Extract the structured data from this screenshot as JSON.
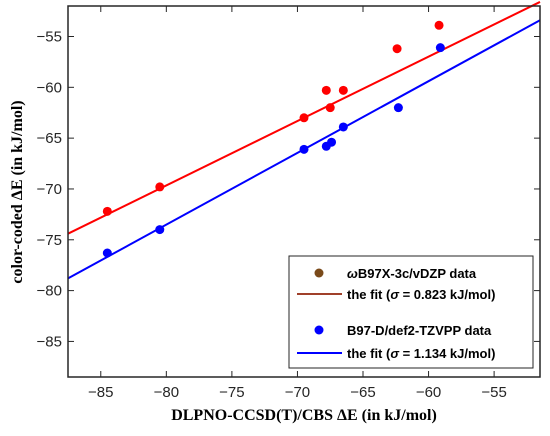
{
  "chart_data": {
    "type": "scatter",
    "xlabel": "DLPNO-CCSD(T)/CBS ΔE  (in kJ/mol)",
    "ylabel": "color-coded ΔE  (in kJ/mol)",
    "xlim": [
      -87.5,
      -51.5
    ],
    "ylim": [
      -88.5,
      -52.0
    ],
    "xticks": [
      -85,
      -80,
      -75,
      -70,
      -65,
      -60,
      -55
    ],
    "yticks": [
      -55,
      -60,
      -65,
      -70,
      -75,
      -80,
      -85
    ],
    "grid": false,
    "legend_position": "bottom-right",
    "series": [
      {
        "name": "ωB97X-3c/vDZP data",
        "legend_prefix": "ω",
        "legend_rest": "B97X-3c/vDZP data",
        "marker_legend_color": "#7a4a1a",
        "color": "#ff0000",
        "points": [
          {
            "x": -84.5,
            "y": -72.2
          },
          {
            "x": -80.5,
            "y": -69.8
          },
          {
            "x": -69.5,
            "y": -63.0
          },
          {
            "x": -67.8,
            "y": -60.3
          },
          {
            "x": -67.5,
            "y": -62.0
          },
          {
            "x": -66.5,
            "y": -60.3
          },
          {
            "x": -62.4,
            "y": -56.2
          },
          {
            "x": -59.2,
            "y": -53.9
          }
        ]
      },
      {
        "name": "the fit (σ = 0.823 kJ/mol)",
        "fit_prefix": "the fit (",
        "fit_sigma": "σ",
        "fit_rest": " = 0.823 kJ/mol)",
        "color": "#ff0000",
        "legend_line_color": "#a0402a",
        "line": [
          {
            "x": -87.5,
            "y": -74.4
          },
          {
            "x": -51.5,
            "y": -51.6
          }
        ]
      },
      {
        "name": "B97-D/def2-TZVPP data",
        "color": "#0000ff",
        "points": [
          {
            "x": -84.5,
            "y": -76.3
          },
          {
            "x": -80.5,
            "y": -74.0
          },
          {
            "x": -69.5,
            "y": -66.1
          },
          {
            "x": -67.8,
            "y": -65.8
          },
          {
            "x": -67.4,
            "y": -65.4
          },
          {
            "x": -66.5,
            "y": -63.9
          },
          {
            "x": -62.3,
            "y": -62.0
          },
          {
            "x": -59.1,
            "y": -56.1
          }
        ]
      },
      {
        "name": "the fit (σ = 1.134 kJ/mol)",
        "fit_prefix": "the fit (",
        "fit_sigma": "σ",
        "fit_rest": " = 1.134 kJ/mol)",
        "color": "#0000ff",
        "line": [
          {
            "x": -87.5,
            "y": -78.8
          },
          {
            "x": -51.5,
            "y": -53.4
          }
        ]
      }
    ]
  }
}
